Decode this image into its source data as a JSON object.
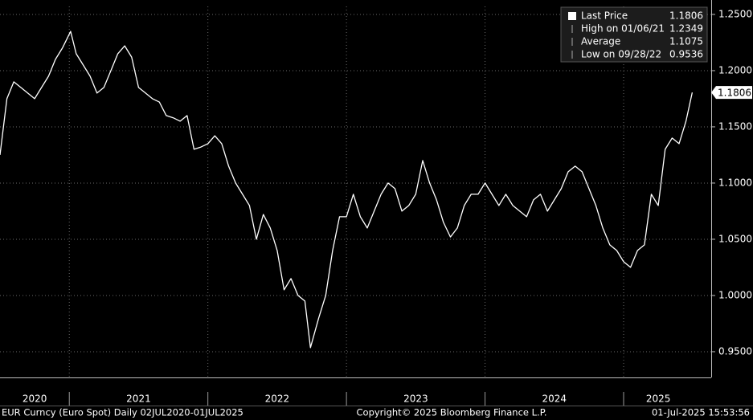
{
  "chart_data": {
    "type": "line",
    "x": [
      2020.5,
      2020.55,
      2020.6,
      2020.65,
      2020.7,
      2020.75,
      2020.8,
      2020.85,
      2020.9,
      2020.95,
      2021.01,
      2021.05,
      2021.1,
      2021.15,
      2021.2,
      2021.25,
      2021.3,
      2021.35,
      2021.4,
      2021.45,
      2021.5,
      2021.55,
      2021.6,
      2021.65,
      2021.7,
      2021.75,
      2021.8,
      2021.85,
      2021.9,
      2021.95,
      2022.0,
      2022.05,
      2022.1,
      2022.15,
      2022.2,
      2022.25,
      2022.3,
      2022.35,
      2022.4,
      2022.45,
      2022.5,
      2022.55,
      2022.6,
      2022.65,
      2022.7,
      2022.74,
      2022.8,
      2022.85,
      2022.9,
      2022.95,
      2023.0,
      2023.05,
      2023.1,
      2023.15,
      2023.2,
      2023.25,
      2023.3,
      2023.35,
      2023.4,
      2023.45,
      2023.5,
      2023.55,
      2023.6,
      2023.65,
      2023.7,
      2023.75,
      2023.8,
      2023.85,
      2023.9,
      2023.95,
      2024.0,
      2024.05,
      2024.1,
      2024.15,
      2024.2,
      2024.25,
      2024.3,
      2024.35,
      2024.4,
      2024.45,
      2024.5,
      2024.55,
      2024.6,
      2024.65,
      2024.7,
      2024.75,
      2024.8,
      2024.85,
      2024.9,
      2024.95,
      2025.0,
      2025.05,
      2025.1,
      2025.15,
      2025.2,
      2025.25,
      2025.3,
      2025.35,
      2025.4,
      2025.45,
      2025.495
    ],
    "series": [
      {
        "name": "Last Price",
        "color": "#ffffff",
        "values": [
          1.125,
          1.175,
          1.19,
          1.185,
          1.18,
          1.175,
          1.185,
          1.195,
          1.21,
          1.22,
          1.2349,
          1.215,
          1.205,
          1.195,
          1.18,
          1.185,
          1.2,
          1.215,
          1.222,
          1.212,
          1.185,
          1.18,
          1.175,
          1.172,
          1.16,
          1.158,
          1.155,
          1.16,
          1.13,
          1.132,
          1.135,
          1.142,
          1.135,
          1.115,
          1.1,
          1.09,
          1.08,
          1.05,
          1.072,
          1.06,
          1.04,
          1.005,
          1.015,
          1.0,
          0.995,
          0.9536,
          0.98,
          1.0,
          1.04,
          1.07,
          1.07,
          1.09,
          1.07,
          1.06,
          1.075,
          1.09,
          1.1,
          1.095,
          1.075,
          1.08,
          1.09,
          1.12,
          1.1,
          1.085,
          1.065,
          1.052,
          1.06,
          1.08,
          1.09,
          1.09,
          1.1,
          1.09,
          1.08,
          1.09,
          1.08,
          1.075,
          1.07,
          1.085,
          1.09,
          1.075,
          1.085,
          1.095,
          1.11,
          1.115,
          1.11,
          1.095,
          1.08,
          1.06,
          1.045,
          1.04,
          1.03,
          1.025,
          1.04,
          1.045,
          1.09,
          1.08,
          1.13,
          1.14,
          1.135,
          1.155,
          1.1806
        ]
      }
    ],
    "legend_stats": [
      {
        "label": "High on 01/06/21",
        "value": 1.2349
      },
      {
        "label": "Average",
        "value": 1.1075
      },
      {
        "label": "Low on 09/28/22",
        "value": 0.9536
      }
    ],
    "xlim": [
      2020.5,
      2025.632
    ],
    "year_dividers": [
      2021,
      2022,
      2023,
      2024,
      2025
    ],
    "year_labels": [
      {
        "value": 2020.75,
        "label": "2020"
      },
      {
        "value": 2021.5,
        "label": "2021"
      },
      {
        "value": 2022.5,
        "label": "2022"
      },
      {
        "value": 2023.5,
        "label": "2023"
      },
      {
        "value": 2024.5,
        "label": "2024"
      },
      {
        "value": 2025.25,
        "label": "2025"
      }
    ],
    "ylim": [
      0.9271,
      1.2571
    ],
    "yticks": [
      {
        "value": 0.95,
        "label": "0.9500"
      },
      {
        "value": 1.0,
        "label": "1.0000"
      },
      {
        "value": 1.05,
        "label": "1.0500"
      },
      {
        "value": 1.1,
        "label": "1.1000"
      },
      {
        "value": 1.15,
        "label": "1.1500"
      },
      {
        "value": 1.2,
        "label": "1.2000"
      },
      {
        "value": 1.25,
        "label": "1.2500"
      }
    ],
    "grid": true,
    "footer": {
      "left": "EUR Curncy (Euro Spot)  Daily 02JUL2020-01JUL2025",
      "center": "Copyright© 2025 Bloomberg Finance L.P.",
      "right": "01-Jul-2025 15:53:56"
    }
  }
}
